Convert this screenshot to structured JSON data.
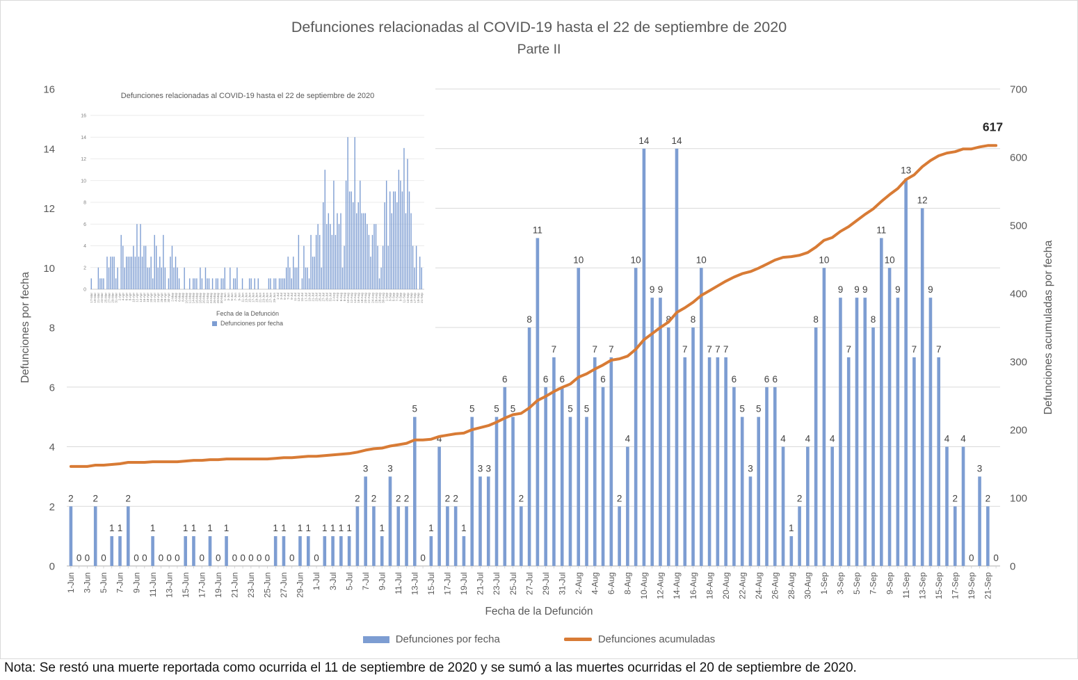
{
  "title": {
    "line1": "Defunciones relacionadas al COVID-19 hasta el 22 de septiembre de 2020",
    "line2": "Parte II"
  },
  "note": "Nota: Se restó una muerte reportada como ocurrida el 11 de septiembre de 2020 y se sumó a las muertes ocurridas el 20 de septiembre de 2020.",
  "colors": {
    "bar": "#7D9DD2",
    "line": "#D87B35",
    "grid": "#D9D9D9",
    "axis": "#BFBFBF",
    "tick": "#C9C9C9",
    "text": "#595959",
    "value_label": "#404040",
    "total_label": "#262626",
    "inset_grid": "#E4E4E4",
    "inset_text": "#808080"
  },
  "main_chart": {
    "x_title": "Fecha de la Defunción",
    "y_left_title": "Defunciones por fecha",
    "y_right_title": "Defunciones acumuladas por fecha",
    "total_label": "617",
    "legend": [
      {
        "label": "Defunciones por fecha",
        "marker": "bar"
      },
      {
        "label": "Defunciones acumuladas",
        "marker": "line"
      }
    ]
  },
  "chart_data": [
    {
      "name": "main",
      "type": "bar+line",
      "title": "Defunciones relacionadas al COVID-19 hasta el 22 de septiembre de 2020 — Parte II",
      "xlabel": "Fecha de la Defunción",
      "ylabel_left": "Defunciones por fecha",
      "ylabel_right": "Defunciones acumuladas por fecha",
      "ylim_left": [
        0,
        16
      ],
      "ylim_right": [
        0,
        700
      ],
      "left_ticks": [
        0,
        2,
        4,
        6,
        8,
        10,
        12,
        14,
        16
      ],
      "right_ticks": [
        0,
        100,
        200,
        300,
        400,
        500,
        600,
        700
      ],
      "x_tick_every": 2,
      "grid": true,
      "legend_position": "bottom",
      "cumulative_base": 144,
      "cumulative_total": 617,
      "dates": [
        "1-Jun",
        "2-Jun",
        "3-Jun",
        "4-Jun",
        "5-Jun",
        "6-Jun",
        "7-Jun",
        "8-Jun",
        "9-Jun",
        "10-Jun",
        "11-Jun",
        "12-Jun",
        "13-Jun",
        "14-Jun",
        "15-Jun",
        "16-Jun",
        "17-Jun",
        "18-Jun",
        "19-Jun",
        "20-Jun",
        "21-Jun",
        "22-Jun",
        "23-Jun",
        "24-Jun",
        "25-Jun",
        "26-Jun",
        "27-Jun",
        "28-Jun",
        "29-Jun",
        "30-Jun",
        "1-Jul",
        "2-Jul",
        "3-Jul",
        "4-Jul",
        "5-Jul",
        "6-Jul",
        "7-Jul",
        "8-Jul",
        "9-Jul",
        "10-Jul",
        "11-Jul",
        "12-Jul",
        "13-Jul",
        "14-Jul",
        "15-Jul",
        "16-Jul",
        "17-Jul",
        "18-Jul",
        "19-Jul",
        "20-Jul",
        "21-Jul",
        "22-Jul",
        "23-Jul",
        "24-Jul",
        "25-Jul",
        "26-Jul",
        "27-Jul",
        "28-Jul",
        "29-Jul",
        "30-Jul",
        "31-Jul",
        "1-Aug",
        "2-Aug",
        "3-Aug",
        "4-Aug",
        "5-Aug",
        "6-Aug",
        "7-Aug",
        "8-Aug",
        "9-Aug",
        "10-Aug",
        "11-Aug",
        "12-Aug",
        "13-Aug",
        "14-Aug",
        "15-Aug",
        "16-Aug",
        "17-Aug",
        "18-Aug",
        "19-Aug",
        "20-Aug",
        "21-Aug",
        "22-Aug",
        "23-Aug",
        "24-Aug",
        "25-Aug",
        "26-Aug",
        "27-Aug",
        "28-Aug",
        "29-Aug",
        "30-Aug",
        "31-Aug",
        "1-Sep",
        "2-Sep",
        "3-Sep",
        "4-Sep",
        "5-Sep",
        "6-Sep",
        "7-Sep",
        "8-Sep",
        "9-Sep",
        "10-Sep",
        "11-Sep",
        "12-Sep",
        "13-Sep",
        "14-Sep",
        "15-Sep",
        "16-Sep",
        "17-Sep",
        "18-Sep",
        "19-Sep",
        "20-Sep",
        "21-Sep",
        "22-Sep"
      ],
      "values": [
        2,
        0,
        0,
        2,
        0,
        1,
        1,
        2,
        0,
        0,
        1,
        0,
        0,
        0,
        1,
        1,
        0,
        1,
        0,
        1,
        0,
        0,
        0,
        0,
        0,
        1,
        1,
        0,
        1,
        1,
        0,
        1,
        1,
        1,
        1,
        2,
        3,
        2,
        1,
        3,
        2,
        2,
        5,
        0,
        1,
        4,
        2,
        2,
        1,
        5,
        3,
        3,
        5,
        6,
        5,
        2,
        8,
        11,
        6,
        7,
        6,
        5,
        10,
        5,
        7,
        6,
        7,
        2,
        4,
        10,
        14,
        9,
        9,
        8,
        14,
        7,
        8,
        10,
        7,
        7,
        7,
        6,
        5,
        3,
        5,
        6,
        6,
        4,
        1,
        2,
        4,
        8,
        10,
        4,
        9,
        7,
        9,
        9,
        8,
        11,
        10,
        9,
        13,
        7,
        12,
        9,
        7,
        4,
        2,
        4,
        0,
        3,
        2,
        0
      ]
    },
    {
      "name": "inset",
      "type": "bar",
      "title": "Defunciones relacionadas al COVID-19 hasta el 22 de septiembre de 2020",
      "x_title": "Fecha de la Defunción",
      "legend_label": "Defunciones por fecha",
      "ylim": [
        0,
        16
      ],
      "x_tick_every": 2,
      "months": [
        {
          "month": "Mar",
          "first_day": 17,
          "days": 15
        },
        {
          "month": "Apr",
          "first_day": 1,
          "days": 30
        },
        {
          "month": "May",
          "first_day": 1,
          "days": 31
        },
        {
          "month": "Jun",
          "first_day": 1,
          "days": 30
        },
        {
          "month": "Jul",
          "first_day": 1,
          "days": 31
        },
        {
          "month": "Aug",
          "first_day": 1,
          "days": 31
        },
        {
          "month": "Sep",
          "first_day": 1,
          "days": 22
        }
      ],
      "values_pre": [
        1,
        0,
        0,
        0,
        2,
        1,
        1,
        1,
        0,
        3,
        2,
        3,
        3,
        3,
        1,
        2,
        0,
        5,
        4,
        2,
        3,
        3,
        3,
        3,
        4,
        3,
        6,
        3,
        6,
        3,
        4,
        4,
        2,
        2,
        3,
        1,
        5,
        4,
        2,
        3,
        2,
        5,
        2,
        0,
        1,
        3,
        4,
        2,
        3,
        2,
        1,
        0,
        0,
        2,
        0,
        0,
        1,
        0,
        1,
        1,
        1,
        0,
        2,
        1,
        0,
        2,
        1,
        1,
        0,
        1,
        0,
        1,
        1,
        0,
        1,
        1
      ],
      "values_note": "series continues with the main chart values (1-Jun to 22-Sep)"
    }
  ]
}
